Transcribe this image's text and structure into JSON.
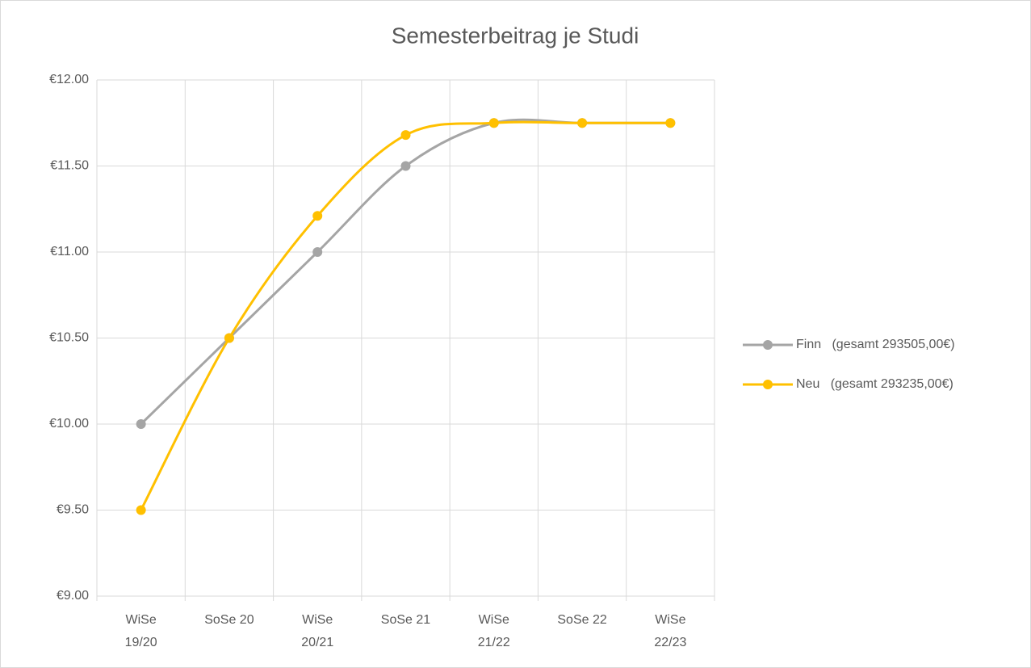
{
  "chart_data": {
    "type": "line",
    "title": "Semesterbeitrag je Studi",
    "categories": [
      "WiSe 19/20",
      "SoSe 20",
      "WiSe 20/21",
      "SoSe 21",
      "WiSe 21/22",
      "SoSe 22",
      "WiSe 22/23"
    ],
    "series": [
      {
        "name": "Finn   (gesamt 293505,00€)",
        "color": "#a5a5a5",
        "values": [
          10,
          10.5,
          11,
          11.5,
          11.75,
          11.75,
          11.75
        ]
      },
      {
        "name": "Neu   (gesamt 293235,00€)",
        "color": "#ffc000",
        "values": [
          9.5,
          10.5,
          11.21,
          11.68,
          11.75,
          11.75,
          11.75
        ]
      }
    ],
    "ylim": [
      9,
      12
    ],
    "yticks": [
      {
        "value": 9,
        "label": "€9.00"
      },
      {
        "value": 9.5,
        "label": "€9.50"
      },
      {
        "value": 10,
        "label": "€10.00"
      },
      {
        "value": 10.5,
        "label": "€10.50"
      },
      {
        "value": 11,
        "label": "€11.00"
      },
      {
        "value": 11.5,
        "label": "€11.50"
      },
      {
        "value": 12,
        "label": "€12.00"
      }
    ],
    "grid": true,
    "smooth": true,
    "legend": "right"
  }
}
